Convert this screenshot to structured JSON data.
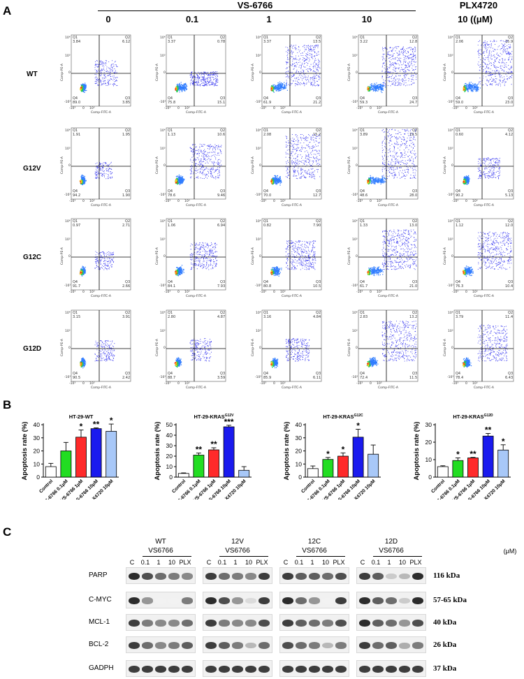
{
  "panel_labels": {
    "a": "A",
    "b": "B",
    "c": "C"
  },
  "panel_a": {
    "drug_group": "VS-6766",
    "plx_group": "PLX4720",
    "concentrations": [
      "0",
      "0.1",
      "1",
      "10",
      "10 ((μM)"
    ],
    "rows": [
      {
        "label": "WT",
        "plots": [
          {
            "q1": "Q1\n3.84",
            "q2": "Q2\n6.12",
            "q3": "Q3\n3.85",
            "q4": "Q4\n89.0"
          },
          {
            "q1": "Q1\n3.37",
            "q2": "Q2\n0.78",
            "q3": "Q3\n15.1",
            "q4": "Q4\n75.8"
          },
          {
            "q1": "Q1\n3.37",
            "q2": "Q2\n13.5",
            "q3": "Q3\n21.2",
            "q4": "Q4\n61.9"
          },
          {
            "q1": "Q1\n3.22",
            "q2": "Q2\n12.8",
            "q3": "Q3\n24.7",
            "q4": "Q4\n59.3"
          },
          {
            "q1": "Q1\n2.06",
            "q2": "Q2\n15.9",
            "q3": "Q3\n23.0",
            "q4": "Q4\n59.0"
          }
        ]
      },
      {
        "label": "G12V",
        "plots": [
          {
            "q1": "Q1\n1.91",
            "q2": "Q2\n1.95",
            "q3": "Q3\n1.90",
            "q4": "Q4\n94.2"
          },
          {
            "q1": "Q1\n1.13",
            "q2": "Q2\n10.6",
            "q3": "Q3\n9.46",
            "q4": "Q4\n78.6"
          },
          {
            "q1": "Q1\n2.08",
            "q2": "Q2\n15.2",
            "q3": "Q3\n12.7",
            "q4": "Q4\n70.0"
          },
          {
            "q1": "Q1\n3.89",
            "q2": "Q2\n19.5",
            "q3": "Q3\n28.0",
            "q4": "Q4\n48.6"
          },
          {
            "q1": "Q1\n0.60",
            "q2": "Q2\n4.12",
            "q3": "Q3\n5.13",
            "q4": "Q4\n90.2"
          }
        ]
      },
      {
        "label": "G12C",
        "plots": [
          {
            "q1": "Q1\n0.97",
            "q2": "Q2\n2.71",
            "q3": "Q3\n2.66",
            "q4": "Q4\n91.7"
          },
          {
            "q1": "Q1\n1.06",
            "q2": "Q2\n6.94",
            "q3": "Q3\n7.93",
            "q4": "Q4\n84.1"
          },
          {
            "q1": "Q1\n0.82",
            "q2": "Q2\n7.90",
            "q3": "Q3\n10.5",
            "q4": "Q4\n80.8"
          },
          {
            "q1": "Q1\n1.33",
            "q2": "Q2\n13.0",
            "q3": "Q3\n21.0",
            "q4": "Q4\n61.7"
          },
          {
            "q1": "Q1\n1.12",
            "q2": "Q2\n12.0",
            "q3": "Q3\n10.4",
            "q4": "Q4\n76.3"
          }
        ]
      },
      {
        "label": "G12D",
        "plots": [
          {
            "q1": "Q1\n3.15",
            "q2": "Q2\n3.91",
            "q3": "Q3\n2.42",
            "q4": "Q4\n90.5"
          },
          {
            "q1": "Q1\n2.80",
            "q2": "Q2\n4.87",
            "q3": "Q3\n3.59",
            "q4": "Q4\n88.7"
          },
          {
            "q1": "Q1\n3.16",
            "q2": "Q2\n4.84",
            "q3": "Q3\n6.11",
            "q4": "Q4\n85.9"
          },
          {
            "q1": "Q1\n2.83",
            "q2": "Q2\n13.2",
            "q3": "Q3\n11.5",
            "q4": "Q4\n72.4"
          },
          {
            "q1": "Q1\n3.79",
            "q2": "Q2\n11.4",
            "q3": "Q3\n6.43",
            "q4": "Q4\n78.4"
          }
        ]
      }
    ],
    "x_axis": "Comp-FITC-A",
    "y_axis": "Comp-PE-A",
    "ticks": {
      "t1": "10⁴",
      "t2": "10³",
      "t3": "0",
      "t4": "-10³"
    }
  },
  "chart_data": [
    {
      "type": "bar",
      "title": "HT-29-WT",
      "ylabel": "Apoptosis rate (%)",
      "ylim": [
        0,
        40
      ],
      "yticks": [
        0,
        10,
        20,
        30,
        40
      ],
      "categories": [
        "Control",
        "VS-6766 0.1μM",
        "VS-6766 1μM",
        "VS-6766 10μM",
        "PLX4720 10μM"
      ],
      "values": [
        8,
        20,
        30.5,
        37,
        35
      ],
      "errors": [
        2.5,
        6.5,
        5.5,
        0.6,
        5.5
      ],
      "significance": [
        "",
        "",
        "*",
        "**",
        "*"
      ]
    },
    {
      "type": "bar",
      "title": "HT-29-KRAS",
      "title_sup": "G12V",
      "ylabel": "Apoptosis rate (%)",
      "ylim": [
        0,
        50
      ],
      "yticks": [
        0,
        10,
        20,
        30,
        40,
        50
      ],
      "categories": [
        "Control",
        "VS-6766 0.1μM",
        "VS-6766 1μM",
        "VS-6766 10μM",
        "PLX4720 10μM"
      ],
      "values": [
        3.5,
        21,
        26,
        48,
        6.5
      ],
      "errors": [
        0.5,
        2,
        2,
        1.5,
        3.5
      ],
      "significance": [
        "",
        "**",
        "**",
        "***",
        ""
      ]
    },
    {
      "type": "bar",
      "title": "HT-29-KRAS",
      "title_sup": "G12C",
      "ylabel": "Apoptosis rate (%)",
      "ylim": [
        0,
        40
      ],
      "yticks": [
        0,
        10,
        20,
        30,
        40
      ],
      "categories": [
        "Control",
        "VS-6766 0.1μM",
        "VS-6766 1μM",
        "VS-6766 10μM",
        "PLX4720 10μM"
      ],
      "values": [
        6.5,
        13.5,
        16,
        30.5,
        17.5
      ],
      "errors": [
        2,
        1.5,
        2.5,
        6,
        7
      ],
      "significance": [
        "",
        "*",
        "*",
        "*",
        ""
      ]
    },
    {
      "type": "bar",
      "title": "HT-29-KRAS",
      "title_sup": "G12D",
      "ylabel": "Apoptosis rate (%)",
      "ylim": [
        0,
        30
      ],
      "yticks": [
        0,
        10,
        20,
        30
      ],
      "categories": [
        "Control",
        "VS-6766 0.1μM",
        "VS-6766 1μM",
        "VS-6766 10μM",
        "PLX4720 10μM"
      ],
      "values": [
        6,
        9.5,
        11,
        23.5,
        15.5
      ],
      "errors": [
        0.5,
        1.5,
        0.3,
        1.5,
        3
      ],
      "significance": [
        "",
        "*",
        "**",
        "**",
        "*"
      ]
    }
  ],
  "bar_colors": [
    "#ffffff",
    "#22dd22",
    "#ff2a2a",
    "#1a1aee",
    "#a8c8f8"
  ],
  "panel_c": {
    "groups": [
      {
        "line1": "WT",
        "line2": "VS6766"
      },
      {
        "line1": "12V",
        "line2": "VS6766"
      },
      {
        "line1": "12C",
        "line2": "VS6766"
      },
      {
        "line1": "12D",
        "line2": "VS6766"
      }
    ],
    "unit": "(μM)",
    "lanes": [
      "C",
      "0.1",
      "1",
      "10",
      "PLX"
    ],
    "proteins": [
      {
        "name": "PARP",
        "kda": "116 kDa"
      },
      {
        "name": "C-MYC",
        "kda": "57-65 kDa"
      },
      {
        "name": "MCL-1",
        "kda": "40 kDa"
      },
      {
        "name": "BCL-2",
        "kda": "26 kDa"
      },
      {
        "name": "GADPH",
        "kda": "37 kDa"
      }
    ],
    "intensities": [
      [
        [
          0.95,
          0.85,
          0.75,
          0.7,
          0.65
        ],
        [
          0.9,
          0.75,
          0.7,
          0.65,
          0.9
        ],
        [
          0.9,
          0.8,
          0.8,
          0.75,
          0.85
        ],
        [
          0.9,
          0.8,
          0.35,
          0.45,
          0.95
        ]
      ],
      [
        [
          0.95,
          0.6,
          0.05,
          0.05,
          0.7
        ],
        [
          0.95,
          0.85,
          0.6,
          0.25,
          0.9
        ],
        [
          0.95,
          0.75,
          0.6,
          0.05,
          0.9
        ],
        [
          0.95,
          0.8,
          0.75,
          0.35,
          0.95
        ]
      ],
      [
        [
          0.9,
          0.7,
          0.65,
          0.65,
          0.75
        ],
        [
          0.9,
          0.7,
          0.65,
          0.65,
          0.85
        ],
        [
          0.9,
          0.8,
          0.75,
          0.7,
          0.85
        ],
        [
          0.95,
          0.8,
          0.75,
          0.6,
          0.85
        ]
      ],
      [
        [
          0.9,
          0.75,
          0.65,
          0.7,
          0.8
        ],
        [
          0.9,
          0.8,
          0.7,
          0.45,
          0.75
        ],
        [
          0.85,
          0.75,
          0.7,
          0.45,
          0.7
        ],
        [
          0.9,
          0.75,
          0.8,
          0.5,
          0.7
        ]
      ],
      [
        [
          0.9,
          0.9,
          0.9,
          0.9,
          0.9
        ],
        [
          0.9,
          0.9,
          0.9,
          0.9,
          0.9
        ],
        [
          0.9,
          0.9,
          0.9,
          0.9,
          0.9
        ],
        [
          0.9,
          0.9,
          0.9,
          0.9,
          0.9
        ]
      ]
    ]
  }
}
